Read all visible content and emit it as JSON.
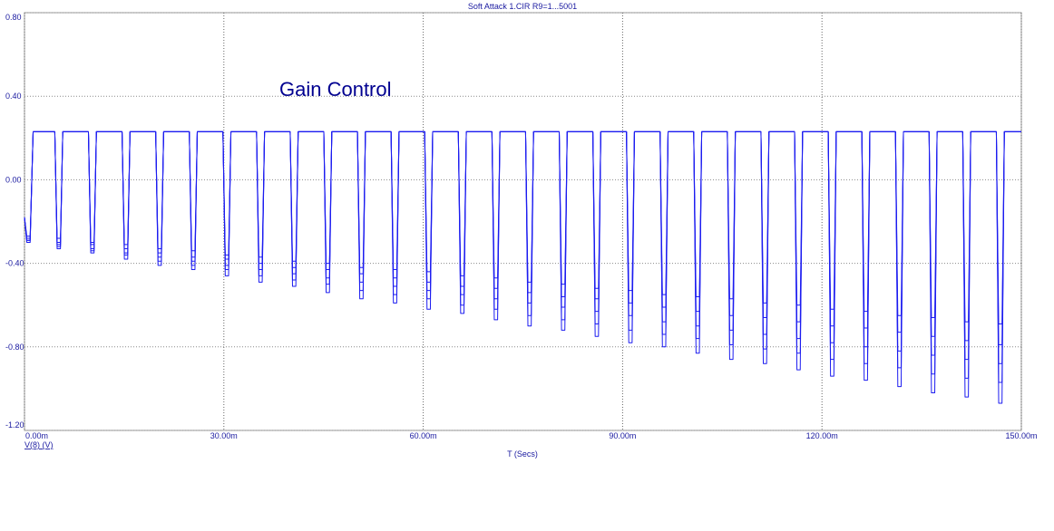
{
  "chart_data": {
    "type": "line",
    "title": "Soft Attack 1.CIR R9=1...5001",
    "annotation": "Gain Control",
    "x_label": "T (Secs)",
    "y_label": "V(8) (V)",
    "grid": true,
    "xlim": [
      0,
      0.15
    ],
    "ylim": [
      -1.2,
      0.8
    ],
    "xticks": [
      {
        "value": 0,
        "label": "0.00m"
      },
      {
        "value": 0.03,
        "label": "30.00m"
      },
      {
        "value": 0.06,
        "label": "60.00m"
      },
      {
        "value": 0.09,
        "label": "90.00m"
      },
      {
        "value": 0.12,
        "label": "120.00m"
      },
      {
        "value": 0.15,
        "label": "150.00m"
      }
    ],
    "yticks": [
      {
        "value": 0.8,
        "label": "0.80"
      },
      {
        "value": 0.4,
        "label": "0.40"
      },
      {
        "value": 0,
        "label": "0.00"
      },
      {
        "value": -0.4,
        "label": "-0.40"
      },
      {
        "value": -0.8,
        "label": "-0.80"
      },
      {
        "value": -1.2,
        "label": "-1.20"
      }
    ],
    "x": [
      0,
      0.00035,
      0.00085,
      0.0013,
      0.00456,
      0.00491,
      0.00541,
      0.00576,
      0.00962,
      0.00997,
      0.01047,
      0.01082,
      0.01468,
      0.01503,
      0.01553,
      0.01588,
      0.01974,
      0.02009,
      0.02059,
      0.02094,
      0.0248,
      0.02515,
      0.02565,
      0.026,
      0.02986,
      0.03021,
      0.03071,
      0.03106,
      0.03492,
      0.03527,
      0.03577,
      0.03612,
      0.03998,
      0.04033,
      0.04083,
      0.04118,
      0.04504,
      0.04539,
      0.04589,
      0.04624,
      0.0501,
      0.05045,
      0.05095,
      0.0513,
      0.05516,
      0.05551,
      0.05601,
      0.05636,
      0.06022,
      0.06057,
      0.06107,
      0.06142,
      0.06528,
      0.06563,
      0.06613,
      0.06648,
      0.07034,
      0.07069,
      0.07119,
      0.07154,
      0.0754,
      0.07575,
      0.07625,
      0.0766,
      0.08046,
      0.08081,
      0.08131,
      0.08166,
      0.08552,
      0.08587,
      0.08637,
      0.08672,
      0.09058,
      0.09093,
      0.09143,
      0.09178,
      0.09564,
      0.09599,
      0.09649,
      0.09684,
      0.1007,
      0.10105,
      0.10155,
      0.1019,
      0.10576,
      0.10611,
      0.10661,
      0.10696,
      0.11082,
      0.11117,
      0.11167,
      0.11202,
      0.11588,
      0.11623,
      0.11673,
      0.11708,
      0.12094,
      0.12129,
      0.12179,
      0.12214,
      0.126,
      0.12635,
      0.12685,
      0.1272,
      0.13106,
      0.13141,
      0.13191,
      0.13226,
      0.13612,
      0.13647,
      0.13697,
      0.13732,
      0.14118,
      0.14153,
      0.14203,
      0.14238,
      0.14624,
      0.14659,
      0.14709,
      0.14744,
      0.15
    ],
    "series": [
      {
        "color": "#1c1cf0",
        "values": [
          -0.18,
          -0.27,
          -0.27,
          0.23,
          0.23,
          -0.28,
          -0.28,
          0.23,
          0.23,
          -0.3,
          -0.3,
          0.23,
          0.23,
          -0.31,
          -0.31,
          0.23,
          0.23,
          -0.33,
          -0.33,
          0.23,
          0.23,
          -0.34,
          -0.34,
          0.23,
          0.23,
          -0.36,
          -0.36,
          0.23,
          0.23,
          -0.37,
          -0.37,
          0.23,
          0.23,
          -0.39,
          -0.39,
          0.23,
          0.23,
          -0.4,
          -0.4,
          0.23,
          0.23,
          -0.42,
          -0.42,
          0.23,
          0.23,
          -0.43,
          -0.43,
          0.23,
          0.23,
          -0.44,
          -0.44,
          0.23,
          0.23,
          -0.46,
          -0.46,
          0.23,
          0.23,
          -0.47,
          -0.47,
          0.23,
          0.23,
          -0.49,
          -0.49,
          0.23,
          0.23,
          -0.5,
          -0.5,
          0.23,
          0.23,
          -0.52,
          -0.52,
          0.23,
          0.23,
          -0.53,
          -0.53,
          0.23,
          0.23,
          -0.55,
          -0.55,
          0.23,
          0.23,
          -0.56,
          -0.56,
          0.23,
          0.23,
          -0.57,
          -0.57,
          0.23,
          0.23,
          -0.59,
          -0.59,
          0.23,
          0.23,
          -0.6,
          -0.6,
          0.23,
          0.23,
          -0.62,
          -0.62,
          0.23,
          0.23,
          -0.63,
          -0.63,
          0.23,
          0.23,
          -0.65,
          -0.65,
          0.23,
          0.23,
          -0.66,
          -0.66,
          0.23,
          0.23,
          -0.68,
          -0.68,
          0.23,
          0.23,
          -0.69,
          -0.69,
          0.23,
          0.23
        ]
      },
      {
        "color": "#1c1cf0",
        "values": [
          -0.18,
          -0.28,
          -0.28,
          0.23,
          0.23,
          -0.3,
          -0.3,
          0.23,
          0.23,
          -0.31,
          -0.31,
          0.23,
          0.23,
          -0.33,
          -0.33,
          0.23,
          0.23,
          -0.35,
          -0.35,
          0.23,
          0.23,
          -0.37,
          -0.37,
          0.23,
          0.23,
          -0.38,
          -0.38,
          0.23,
          0.23,
          -0.4,
          -0.4,
          0.23,
          0.23,
          -0.42,
          -0.42,
          0.23,
          0.23,
          -0.43,
          -0.43,
          0.23,
          0.23,
          -0.45,
          -0.45,
          0.23,
          0.23,
          -0.47,
          -0.47,
          0.23,
          0.23,
          -0.49,
          -0.49,
          0.23,
          0.23,
          -0.51,
          -0.51,
          0.23,
          0.23,
          -0.52,
          -0.52,
          0.23,
          0.23,
          -0.54,
          -0.54,
          0.23,
          0.23,
          -0.56,
          -0.56,
          0.23,
          0.23,
          -0.57,
          -0.57,
          0.23,
          0.23,
          -0.59,
          -0.59,
          0.23,
          0.23,
          -0.61,
          -0.61,
          0.23,
          0.23,
          -0.63,
          -0.63,
          0.23,
          0.23,
          -0.65,
          -0.65,
          0.23,
          0.23,
          -0.66,
          -0.66,
          0.23,
          0.23,
          -0.68,
          -0.68,
          0.23,
          0.23,
          -0.7,
          -0.7,
          0.23,
          0.23,
          -0.71,
          -0.71,
          0.23,
          0.23,
          -0.73,
          -0.73,
          0.23,
          0.23,
          -0.75,
          -0.75,
          0.23,
          0.23,
          -0.77,
          -0.77,
          0.23,
          0.23,
          -0.79,
          -0.79,
          0.23,
          0.23
        ]
      },
      {
        "color": "#1c1cf0",
        "values": [
          -0.18,
          -0.29,
          -0.29,
          0.23,
          0.23,
          -0.31,
          -0.31,
          0.23,
          0.23,
          -0.33,
          -0.33,
          0.23,
          0.23,
          -0.35,
          -0.35,
          0.23,
          0.23,
          -0.37,
          -0.37,
          0.23,
          0.23,
          -0.39,
          -0.39,
          0.23,
          0.23,
          -0.41,
          -0.41,
          0.23,
          0.23,
          -0.43,
          -0.43,
          0.23,
          0.23,
          -0.45,
          -0.45,
          0.23,
          0.23,
          -0.47,
          -0.47,
          0.23,
          0.23,
          -0.49,
          -0.49,
          0.23,
          0.23,
          -0.51,
          -0.51,
          0.23,
          0.23,
          -0.53,
          -0.53,
          0.23,
          0.23,
          -0.55,
          -0.55,
          0.23,
          0.23,
          -0.57,
          -0.57,
          0.23,
          0.23,
          -0.59,
          -0.59,
          0.23,
          0.23,
          -0.61,
          -0.61,
          0.23,
          0.23,
          -0.63,
          -0.63,
          0.23,
          0.23,
          -0.65,
          -0.65,
          0.23,
          0.23,
          -0.68,
          -0.68,
          0.23,
          0.23,
          -0.7,
          -0.7,
          0.23,
          0.23,
          -0.72,
          -0.72,
          0.23,
          0.23,
          -0.74,
          -0.74,
          0.23,
          0.23,
          -0.76,
          -0.76,
          0.23,
          0.23,
          -0.78,
          -0.78,
          0.23,
          0.23,
          -0.8,
          -0.8,
          0.23,
          0.23,
          -0.82,
          -0.82,
          0.23,
          0.23,
          -0.84,
          -0.84,
          0.23,
          0.23,
          -0.86,
          -0.86,
          0.23,
          0.23,
          -0.88,
          -0.88,
          0.23,
          0.23
        ]
      },
      {
        "color": "#1c1cf0",
        "values": [
          -0.18,
          -0.29,
          -0.29,
          0.23,
          0.23,
          -0.32,
          -0.32,
          0.23,
          0.23,
          -0.34,
          -0.34,
          0.23,
          0.23,
          -0.36,
          -0.36,
          0.23,
          0.23,
          -0.39,
          -0.39,
          0.23,
          0.23,
          -0.41,
          -0.41,
          0.23,
          0.23,
          -0.43,
          -0.43,
          0.23,
          0.23,
          -0.46,
          -0.46,
          0.23,
          0.23,
          -0.48,
          -0.48,
          0.23,
          0.23,
          -0.5,
          -0.5,
          0.23,
          0.23,
          -0.53,
          -0.53,
          0.23,
          0.23,
          -0.55,
          -0.55,
          0.23,
          0.23,
          -0.57,
          -0.57,
          0.23,
          0.23,
          -0.6,
          -0.6,
          0.23,
          0.23,
          -0.62,
          -0.62,
          0.23,
          0.23,
          -0.65,
          -0.65,
          0.23,
          0.23,
          -0.67,
          -0.67,
          0.23,
          0.23,
          -0.69,
          -0.69,
          0.23,
          0.23,
          -0.72,
          -0.72,
          0.23,
          0.23,
          -0.74,
          -0.74,
          0.23,
          0.23,
          -0.76,
          -0.76,
          0.23,
          0.23,
          -0.79,
          -0.79,
          0.23,
          0.23,
          -0.81,
          -0.81,
          0.23,
          0.23,
          -0.83,
          -0.83,
          0.23,
          0.23,
          -0.86,
          -0.86,
          0.23,
          0.23,
          -0.88,
          -0.88,
          0.23,
          0.23,
          -0.9,
          -0.9,
          0.23,
          0.23,
          -0.93,
          -0.93,
          0.23,
          0.23,
          -0.95,
          -0.95,
          0.23,
          0.23,
          -0.97,
          -0.97,
          0.23,
          0.23
        ]
      },
      {
        "color": "#1c1cf0",
        "values": [
          -0.18,
          -0.3,
          -0.3,
          0.23,
          0.23,
          -0.33,
          -0.33,
          0.23,
          0.23,
          -0.35,
          -0.35,
          0.23,
          0.23,
          -0.38,
          -0.38,
          0.23,
          0.23,
          -0.41,
          -0.41,
          0.23,
          0.23,
          -0.43,
          -0.43,
          0.23,
          0.23,
          -0.46,
          -0.46,
          0.23,
          0.23,
          -0.49,
          -0.49,
          0.23,
          0.23,
          -0.51,
          -0.51,
          0.23,
          0.23,
          -0.54,
          -0.54,
          0.23,
          0.23,
          -0.57,
          -0.57,
          0.23,
          0.23,
          -0.59,
          -0.59,
          0.23,
          0.23,
          -0.62,
          -0.62,
          0.23,
          0.23,
          -0.64,
          -0.64,
          0.23,
          0.23,
          -0.67,
          -0.67,
          0.23,
          0.23,
          -0.7,
          -0.7,
          0.23,
          0.23,
          -0.72,
          -0.72,
          0.23,
          0.23,
          -0.75,
          -0.75,
          0.23,
          0.23,
          -0.78,
          -0.78,
          0.23,
          0.23,
          -0.8,
          -0.8,
          0.23,
          0.23,
          -0.83,
          -0.83,
          0.23,
          0.23,
          -0.86,
          -0.86,
          0.23,
          0.23,
          -0.88,
          -0.88,
          0.23,
          0.23,
          -0.91,
          -0.91,
          0.23,
          0.23,
          -0.94,
          -0.94,
          0.23,
          0.23,
          -0.96,
          -0.96,
          0.23,
          0.23,
          -0.99,
          -0.99,
          0.23,
          0.23,
          -1.02,
          -1.02,
          0.23,
          0.23,
          -1.04,
          -1.04,
          0.23,
          0.23,
          -1.07,
          -1.07,
          0.23,
          0.23
        ]
      }
    ]
  }
}
